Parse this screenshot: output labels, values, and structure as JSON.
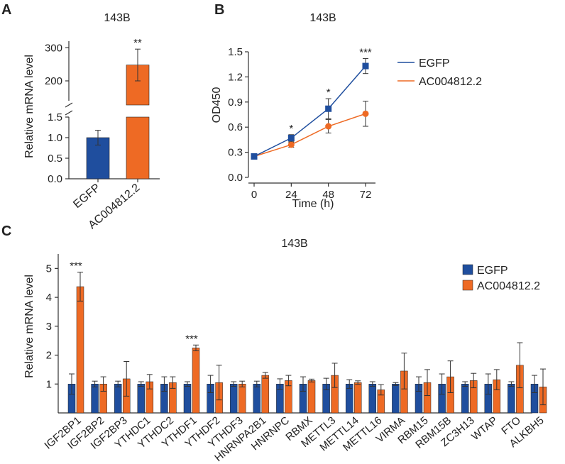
{
  "colors": {
    "egfp": "#1f4e9e",
    "ac": "#ee6a24",
    "axis": "#333333"
  },
  "chart_data": [
    {
      "panel": "A",
      "type": "bar",
      "title": "143B",
      "ylabel": "Relative mRNA level",
      "categories": [
        "EGFP",
        "AC004812.2"
      ],
      "values": [
        1.0,
        248
      ],
      "errors": [
        0.18,
        48
      ],
      "significance": [
        "",
        "**"
      ],
      "axis_break": {
        "lower_range": [
          0,
          1.5
        ],
        "upper_range": [
          140,
          320
        ]
      },
      "lower_ticks": [
        0.0,
        0.5,
        1.0,
        1.5
      ],
      "lower_tick_labels": [
        "0.0",
        "0.5",
        "1.0",
        "1.5"
      ],
      "upper_ticks": [
        200,
        300
      ],
      "upper_tick_labels": [
        "200",
        "300"
      ]
    },
    {
      "panel": "B",
      "type": "line",
      "title": "143B",
      "xlabel": "Time (h)",
      "ylabel": "OD450",
      "x": [
        0,
        24,
        48,
        72
      ],
      "xticks": [
        "0",
        "24",
        "48",
        "72"
      ],
      "yticks": [
        "0.0",
        "0.3",
        "0.6",
        "0.9",
        "1.2",
        "1.5"
      ],
      "ylim": [
        0,
        1.5
      ],
      "series": [
        {
          "name": "EGFP",
          "values": [
            0.25,
            0.47,
            0.82,
            1.33
          ],
          "errors": [
            0.02,
            0.04,
            0.12,
            0.09
          ]
        },
        {
          "name": "AC004812.2",
          "values": [
            0.25,
            0.39,
            0.61,
            0.76
          ],
          "errors": [
            0.02,
            0.03,
            0.08,
            0.15
          ]
        }
      ],
      "significance": [
        "",
        "*",
        "*",
        "***"
      ]
    },
    {
      "panel": "C",
      "type": "bar",
      "title": "143B",
      "ylabel": "Relative mRNA level",
      "ylim": [
        0,
        5.5
      ],
      "yticks": [
        "1",
        "2",
        "3",
        "4",
        "5"
      ],
      "categories": [
        "IGF2BP1",
        "IGF2BP2",
        "IGF2BP3",
        "YTHDC1",
        "YTHDC2",
        "YTHDF1",
        "YTHDF2",
        "YTHDF3",
        "HNRNPA2B1",
        "HNRNPC",
        "RBMX",
        "METTL3",
        "METTL14",
        "METTL16",
        "VIRMA",
        "RBM15",
        "RBM15B",
        "ZC3H13",
        "WTAP",
        "FTO",
        "ALKBH5"
      ],
      "series": [
        {
          "name": "EGFP",
          "values": [
            1,
            1,
            1,
            1,
            1,
            1,
            1,
            1,
            1,
            1,
            1,
            1,
            1,
            1,
            1,
            1,
            1,
            1,
            1,
            1,
            1
          ],
          "errors": [
            0.35,
            0.1,
            0.1,
            0.08,
            0.25,
            0.08,
            0.3,
            0.08,
            0.1,
            0.18,
            0.25,
            0.2,
            0.15,
            0.08,
            0.05,
            0.25,
            0.35,
            0.08,
            0.35,
            0.08,
            0.3
          ]
        },
        {
          "name": "AC004812.2",
          "values": [
            4.37,
            1.0,
            1.18,
            1.08,
            1.05,
            2.25,
            1.05,
            1.0,
            1.3,
            1.12,
            1.12,
            1.3,
            1.05,
            0.8,
            1.45,
            1.05,
            1.25,
            1.12,
            1.15,
            1.65,
            0.9
          ],
          "errors": [
            0.5,
            0.25,
            0.6,
            0.25,
            0.2,
            0.1,
            0.6,
            0.1,
            0.1,
            0.18,
            0.05,
            0.42,
            0.06,
            0.18,
            0.62,
            0.45,
            0.55,
            0.25,
            0.35,
            0.78,
            0.62
          ]
        }
      ],
      "significance": [
        "***",
        "",
        "",
        "",
        "",
        "***",
        "",
        "",
        "",
        "",
        "",
        "",
        "",
        "",
        "",
        "",
        "",
        "",
        "",
        "",
        ""
      ]
    }
  ],
  "panel_labels": {
    "a": "A",
    "b": "B",
    "c": "C"
  }
}
